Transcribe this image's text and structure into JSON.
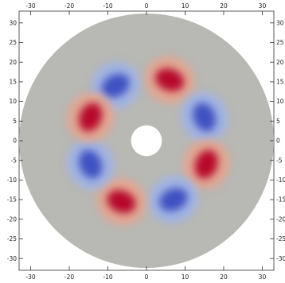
{
  "chart_data": {
    "type": "heatmap",
    "title": "",
    "xlabel": "",
    "ylabel": "",
    "xlim": [
      -33,
      33
    ],
    "ylim": [
      -33,
      33
    ],
    "x_ticks": [
      -30,
      -20,
      -10,
      0,
      10,
      20,
      30
    ],
    "y_ticks": [
      -30,
      -25,
      -20,
      -15,
      -10,
      -5,
      0,
      5,
      10,
      15,
      20,
      25,
      30
    ],
    "x_tick_labels": [
      "-30",
      "-20",
      "-10",
      "0",
      "10",
      "20",
      "30"
    ],
    "y_tick_labels": [
      "-30",
      "-25",
      "-20",
      "-15",
      "-10",
      "-5",
      "0",
      "5",
      "10",
      "15",
      "20",
      "25",
      "30"
    ],
    "domain": {
      "shape": "annulus",
      "inner_radius": 4,
      "outer_radius": 33
    },
    "colormap": [
      "#3b4cc0",
      "#b8b8b8",
      "#b40426"
    ],
    "background_color": "#b8b8b4",
    "lobes": [
      {
        "x": -8,
        "y": 14,
        "value": -1.0
      },
      {
        "x": 6,
        "y": 15.5,
        "value": 1.0
      },
      {
        "x": 15,
        "y": 6,
        "value": -1.0
      },
      {
        "x": 15.5,
        "y": -6,
        "value": 1.0
      },
      {
        "x": 7,
        "y": -15,
        "value": -1.0
      },
      {
        "x": -6.5,
        "y": -15.5,
        "value": 1.0
      },
      {
        "x": -14.5,
        "y": -6,
        "value": -1.0
      },
      {
        "x": -14.5,
        "y": 6,
        "value": 1.0
      }
    ]
  }
}
